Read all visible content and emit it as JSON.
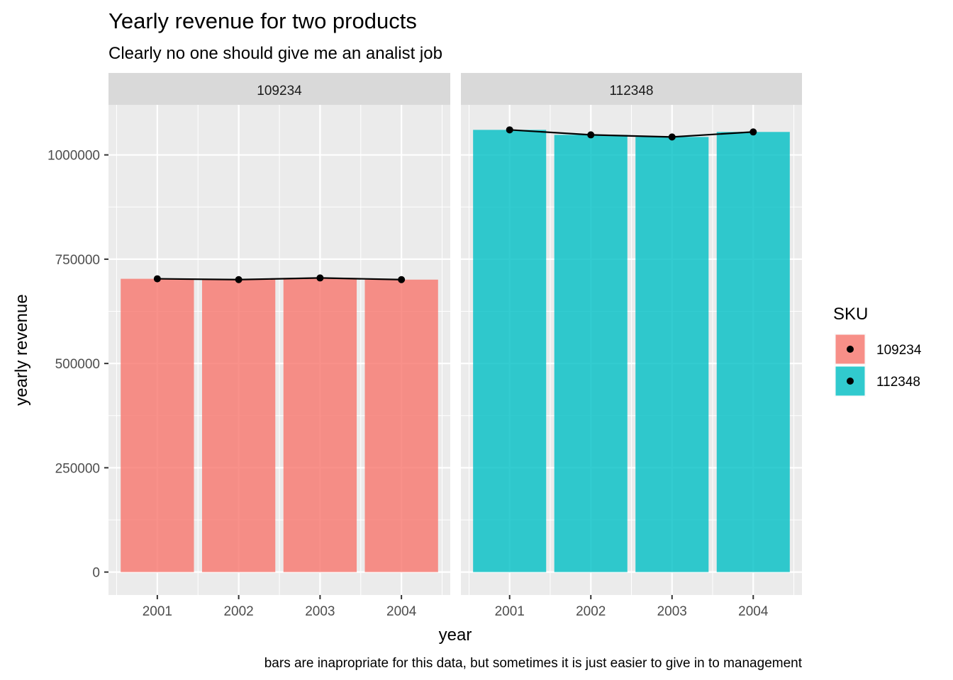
{
  "chart_data": {
    "type": "bar",
    "title": "Yearly revenue for two products",
    "subtitle": "Clearly no one should give me an analist job",
    "caption": "bars are inapropriate for this data, but sometimes it is just easier to give in to management",
    "xlabel": "year",
    "ylabel": "yearly revenue",
    "categories": [
      "2001",
      "2002",
      "2003",
      "2004"
    ],
    "ylim": [
      -55000,
      1120000
    ],
    "yticks": [
      0,
      250000,
      500000,
      750000,
      1000000
    ],
    "ytick_labels": [
      "0",
      "250000",
      "500000",
      "750000",
      "1000000"
    ],
    "grid": true,
    "legend": {
      "title": "SKU",
      "position": "right",
      "entries": [
        "109234",
        "112348"
      ]
    },
    "panels": [
      {
        "name": "109234",
        "color": "#F8766D",
        "values": [
          703000,
          701000,
          705000,
          701000
        ]
      },
      {
        "name": "112348",
        "color": "#00BFC4",
        "values": [
          1060000,
          1048000,
          1043000,
          1055000
        ]
      }
    ],
    "line_color": "#000000",
    "bar_opacity": 0.8
  }
}
